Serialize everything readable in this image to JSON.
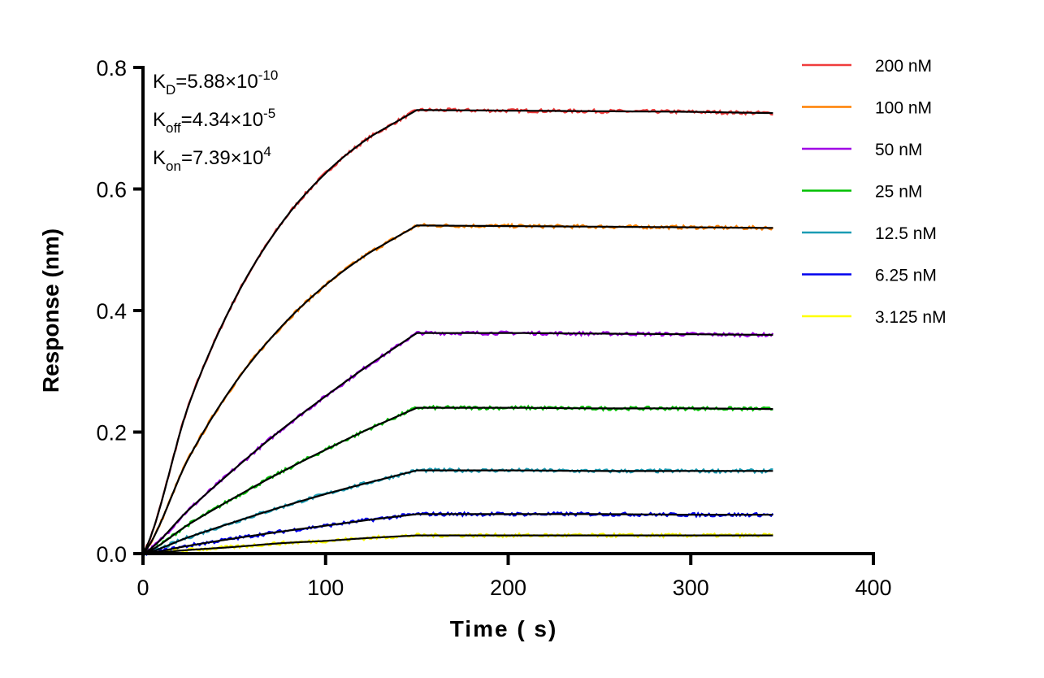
{
  "chart_data": {
    "type": "line",
    "title": "",
    "xlabel": "Time ( s)",
    "ylabel": "Response (nm)",
    "xlim": [
      0,
      400
    ],
    "ylim": [
      0,
      0.8
    ],
    "xticks": [
      "0",
      "100",
      "200",
      "300",
      "400"
    ],
    "yticks": [
      "0.0",
      "0.2",
      "0.4",
      "0.6",
      "0.8"
    ],
    "grid": false,
    "legend_position": "right",
    "annotations": [
      {
        "main": "K",
        "sub": "D",
        "rest": "=5.88×10",
        "sup": "-10"
      },
      {
        "main": "K",
        "sub": "off",
        "rest": "=4.34×10",
        "sup": "-5"
      },
      {
        "main": "K",
        "sub": "on",
        "rest": "=7.39×10",
        "sup": "4"
      }
    ],
    "fit_color": "#000000",
    "x": [
      0,
      25,
      50,
      75,
      100,
      125,
      150,
      200,
      250,
      300,
      345
    ],
    "series": [
      {
        "name": "200 nM",
        "color": "#f03c3c",
        "values": [
          0,
          0.244,
          0.417,
          0.54,
          0.626,
          0.687,
          0.73,
          0.729,
          0.728,
          0.727,
          0.725
        ]
      },
      {
        "name": "100 nM",
        "color": "#ff8000",
        "values": [
          0,
          0.157,
          0.279,
          0.371,
          0.442,
          0.497,
          0.54,
          0.539,
          0.538,
          0.537,
          0.536
        ]
      },
      {
        "name": "50 nM",
        "color": "#a000e6",
        "values": [
          0,
          0.072,
          0.139,
          0.202,
          0.259,
          0.313,
          0.363,
          0.363,
          0.362,
          0.361,
          0.36
        ]
      },
      {
        "name": "25 nM",
        "color": "#00c000",
        "values": [
          0,
          0.048,
          0.092,
          0.133,
          0.171,
          0.207,
          0.24,
          0.24,
          0.239,
          0.239,
          0.238
        ]
      },
      {
        "name": "12.5 nM",
        "color": "#1a9cb4",
        "values": [
          0,
          0.027,
          0.052,
          0.076,
          0.098,
          0.118,
          0.137,
          0.137,
          0.136,
          0.136,
          0.136
        ]
      },
      {
        "name": "6.25 nM",
        "color": "#0000ee",
        "values": [
          0,
          0.013,
          0.025,
          0.036,
          0.046,
          0.056,
          0.065,
          0.065,
          0.065,
          0.064,
          0.064
        ]
      },
      {
        "name": "3.125 nM",
        "color": "#ffff00",
        "values": [
          0,
          0.006,
          0.011,
          0.017,
          0.021,
          0.026,
          0.03,
          0.03,
          0.03,
          0.03,
          0.03
        ]
      }
    ]
  }
}
